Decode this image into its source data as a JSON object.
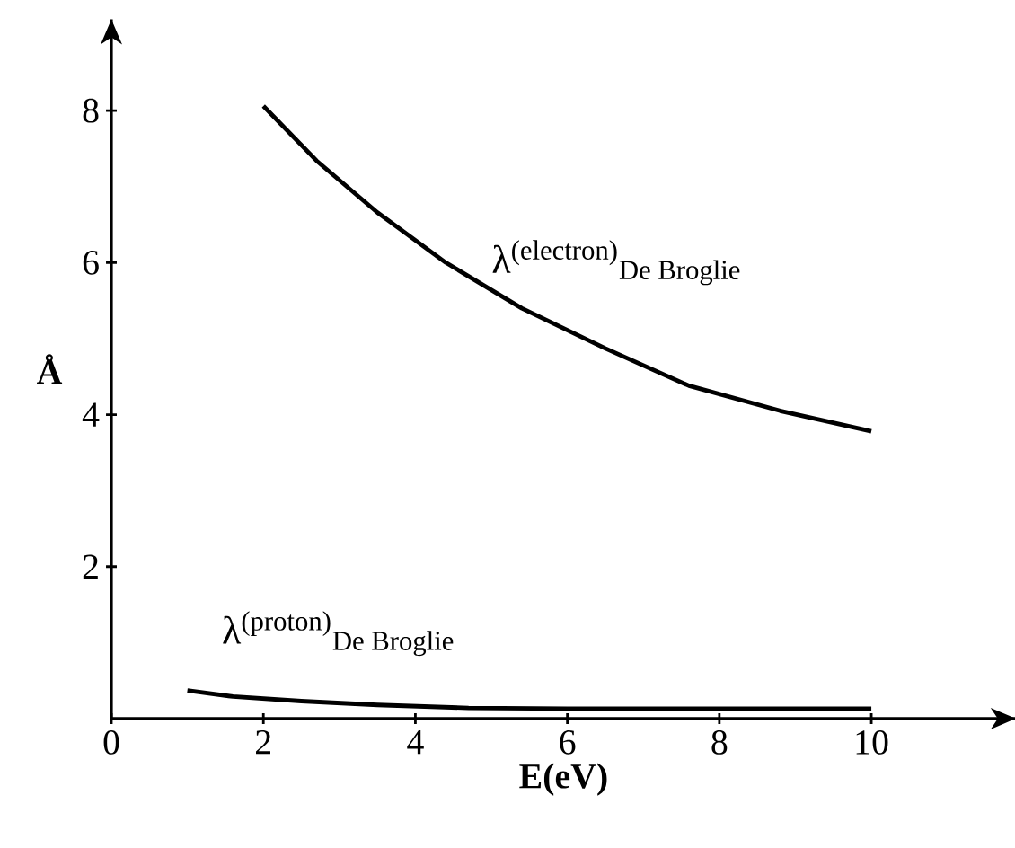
{
  "chart_data": {
    "type": "line",
    "xlabel": "E(eV)",
    "ylabel": "Å",
    "xlim": [
      0,
      11.9
    ],
    "ylim": [
      0,
      9.2
    ],
    "xticks": [
      0,
      2,
      4,
      6,
      8,
      10
    ],
    "yticks": [
      2,
      4,
      6,
      8
    ],
    "series": [
      {
        "name": "λ$^{(electron)}$$_{De Broglie}$",
        "color": "#000000",
        "x": [
          2.0,
          2.7,
          3.5,
          4.4,
          5.4,
          6.5,
          7.6,
          8.8,
          10.0
        ],
        "values": [
          8.06,
          7.34,
          6.66,
          6.0,
          5.4,
          4.87,
          4.38,
          4.05,
          3.78
        ]
      },
      {
        "name": "λ$^{(proton)}$$_{De Broglie}$",
        "color": "#000000",
        "x": [
          1.0,
          1.6,
          2.5,
          3.5,
          4.7,
          6.0,
          10.0
        ],
        "values": [
          0.37,
          0.29,
          0.23,
          0.18,
          0.14,
          0.13,
          0.13
        ]
      }
    ]
  }
}
